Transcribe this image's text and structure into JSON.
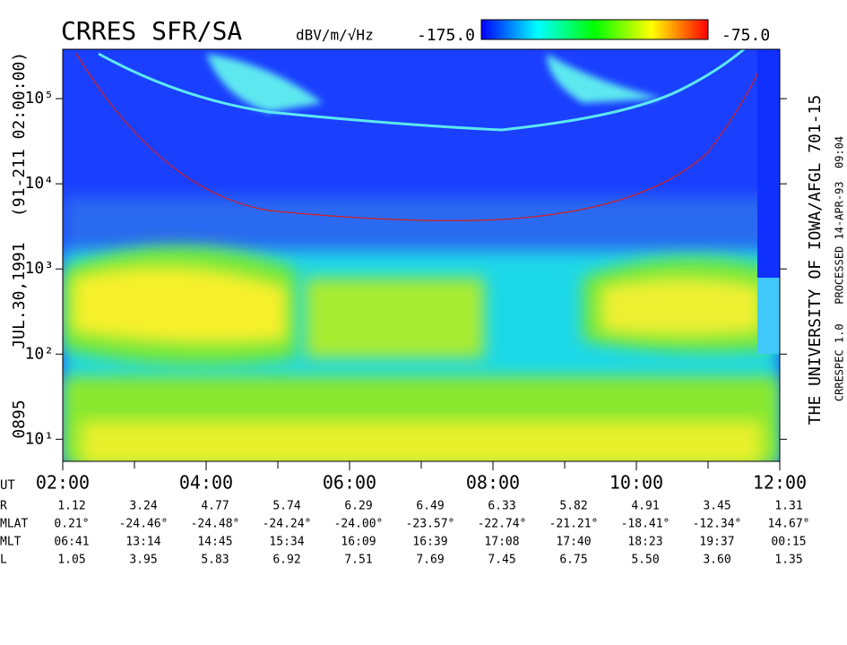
{
  "chart_data": {
    "type": "spectrogram",
    "title": "CRRES SFR/SA",
    "colorbar_label": "dBV/m/√Hz",
    "colorbar_range": [
      {
        "value": -175,
        "label": "-175.0"
      },
      {
        "value": -75,
        "label": "-75.0"
      }
    ],
    "colorbar_colors": [
      "#0000ff",
      "#00ffff",
      "#00ff00",
      "#ffff00",
      "#ff0000"
    ],
    "log_y": true,
    "ylim": [
      5.5,
      380000
    ],
    "yticks": [
      {
        "value": 10,
        "label": "10¹"
      },
      {
        "value": 100,
        "label": "10²"
      },
      {
        "value": 1000,
        "label": "10³"
      },
      {
        "value": 10000,
        "label": "10⁴"
      },
      {
        "value": 100000,
        "label": "10⁵"
      }
    ],
    "xlim": [
      2,
      12
    ],
    "xticks": [
      {
        "value": 2,
        "label": "02:00"
      },
      {
        "value": 4,
        "label": "04:00"
      },
      {
        "value": 6,
        "label": "06:00"
      },
      {
        "value": 8,
        "label": "08:00"
      },
      {
        "value": 10,
        "label": "10:00"
      },
      {
        "value": 12,
        "label": "12:00"
      }
    ],
    "xminorticks": [
      3,
      5,
      7,
      9,
      11
    ],
    "x_label": "UT",
    "left_labels": [
      "0895",
      "JUL.30,1991",
      "(91-211 02:00:00)"
    ],
    "right_labels": [
      "THE UNIVERSITY OF IOWA/AFGL 701-15",
      "CRRESPEC 1.0   PROCESSED 14-APR-93  09:04"
    ],
    "ephemeris": [
      {
        "label": "R",
        "values": [
          "1.12",
          "3.24",
          "4.77",
          "5.74",
          "6.29",
          "6.49",
          "6.33",
          "5.82",
          "4.91",
          "3.45",
          "1.31"
        ]
      },
      {
        "label": "MLAT",
        "values": [
          "0.21°",
          "-24.46°",
          "-24.48°",
          "-24.24°",
          "-24.00°",
          "-23.57°",
          "-22.74°",
          "-21.21°",
          "-18.41°",
          "-12.34°",
          "14.67°"
        ]
      },
      {
        "label": "MLT",
        "values": [
          "06:41",
          "13:14",
          "14:45",
          "15:34",
          "16:09",
          "16:39",
          "17:08",
          "17:40",
          "18:23",
          "19:37",
          "00:15"
        ]
      },
      {
        "label": "L",
        "values": [
          "1.05",
          "3.95",
          "5.83",
          "6.92",
          "7.51",
          "7.69",
          "7.45",
          "6.75",
          "5.50",
          "3.60",
          "1.35"
        ]
      }
    ]
  }
}
